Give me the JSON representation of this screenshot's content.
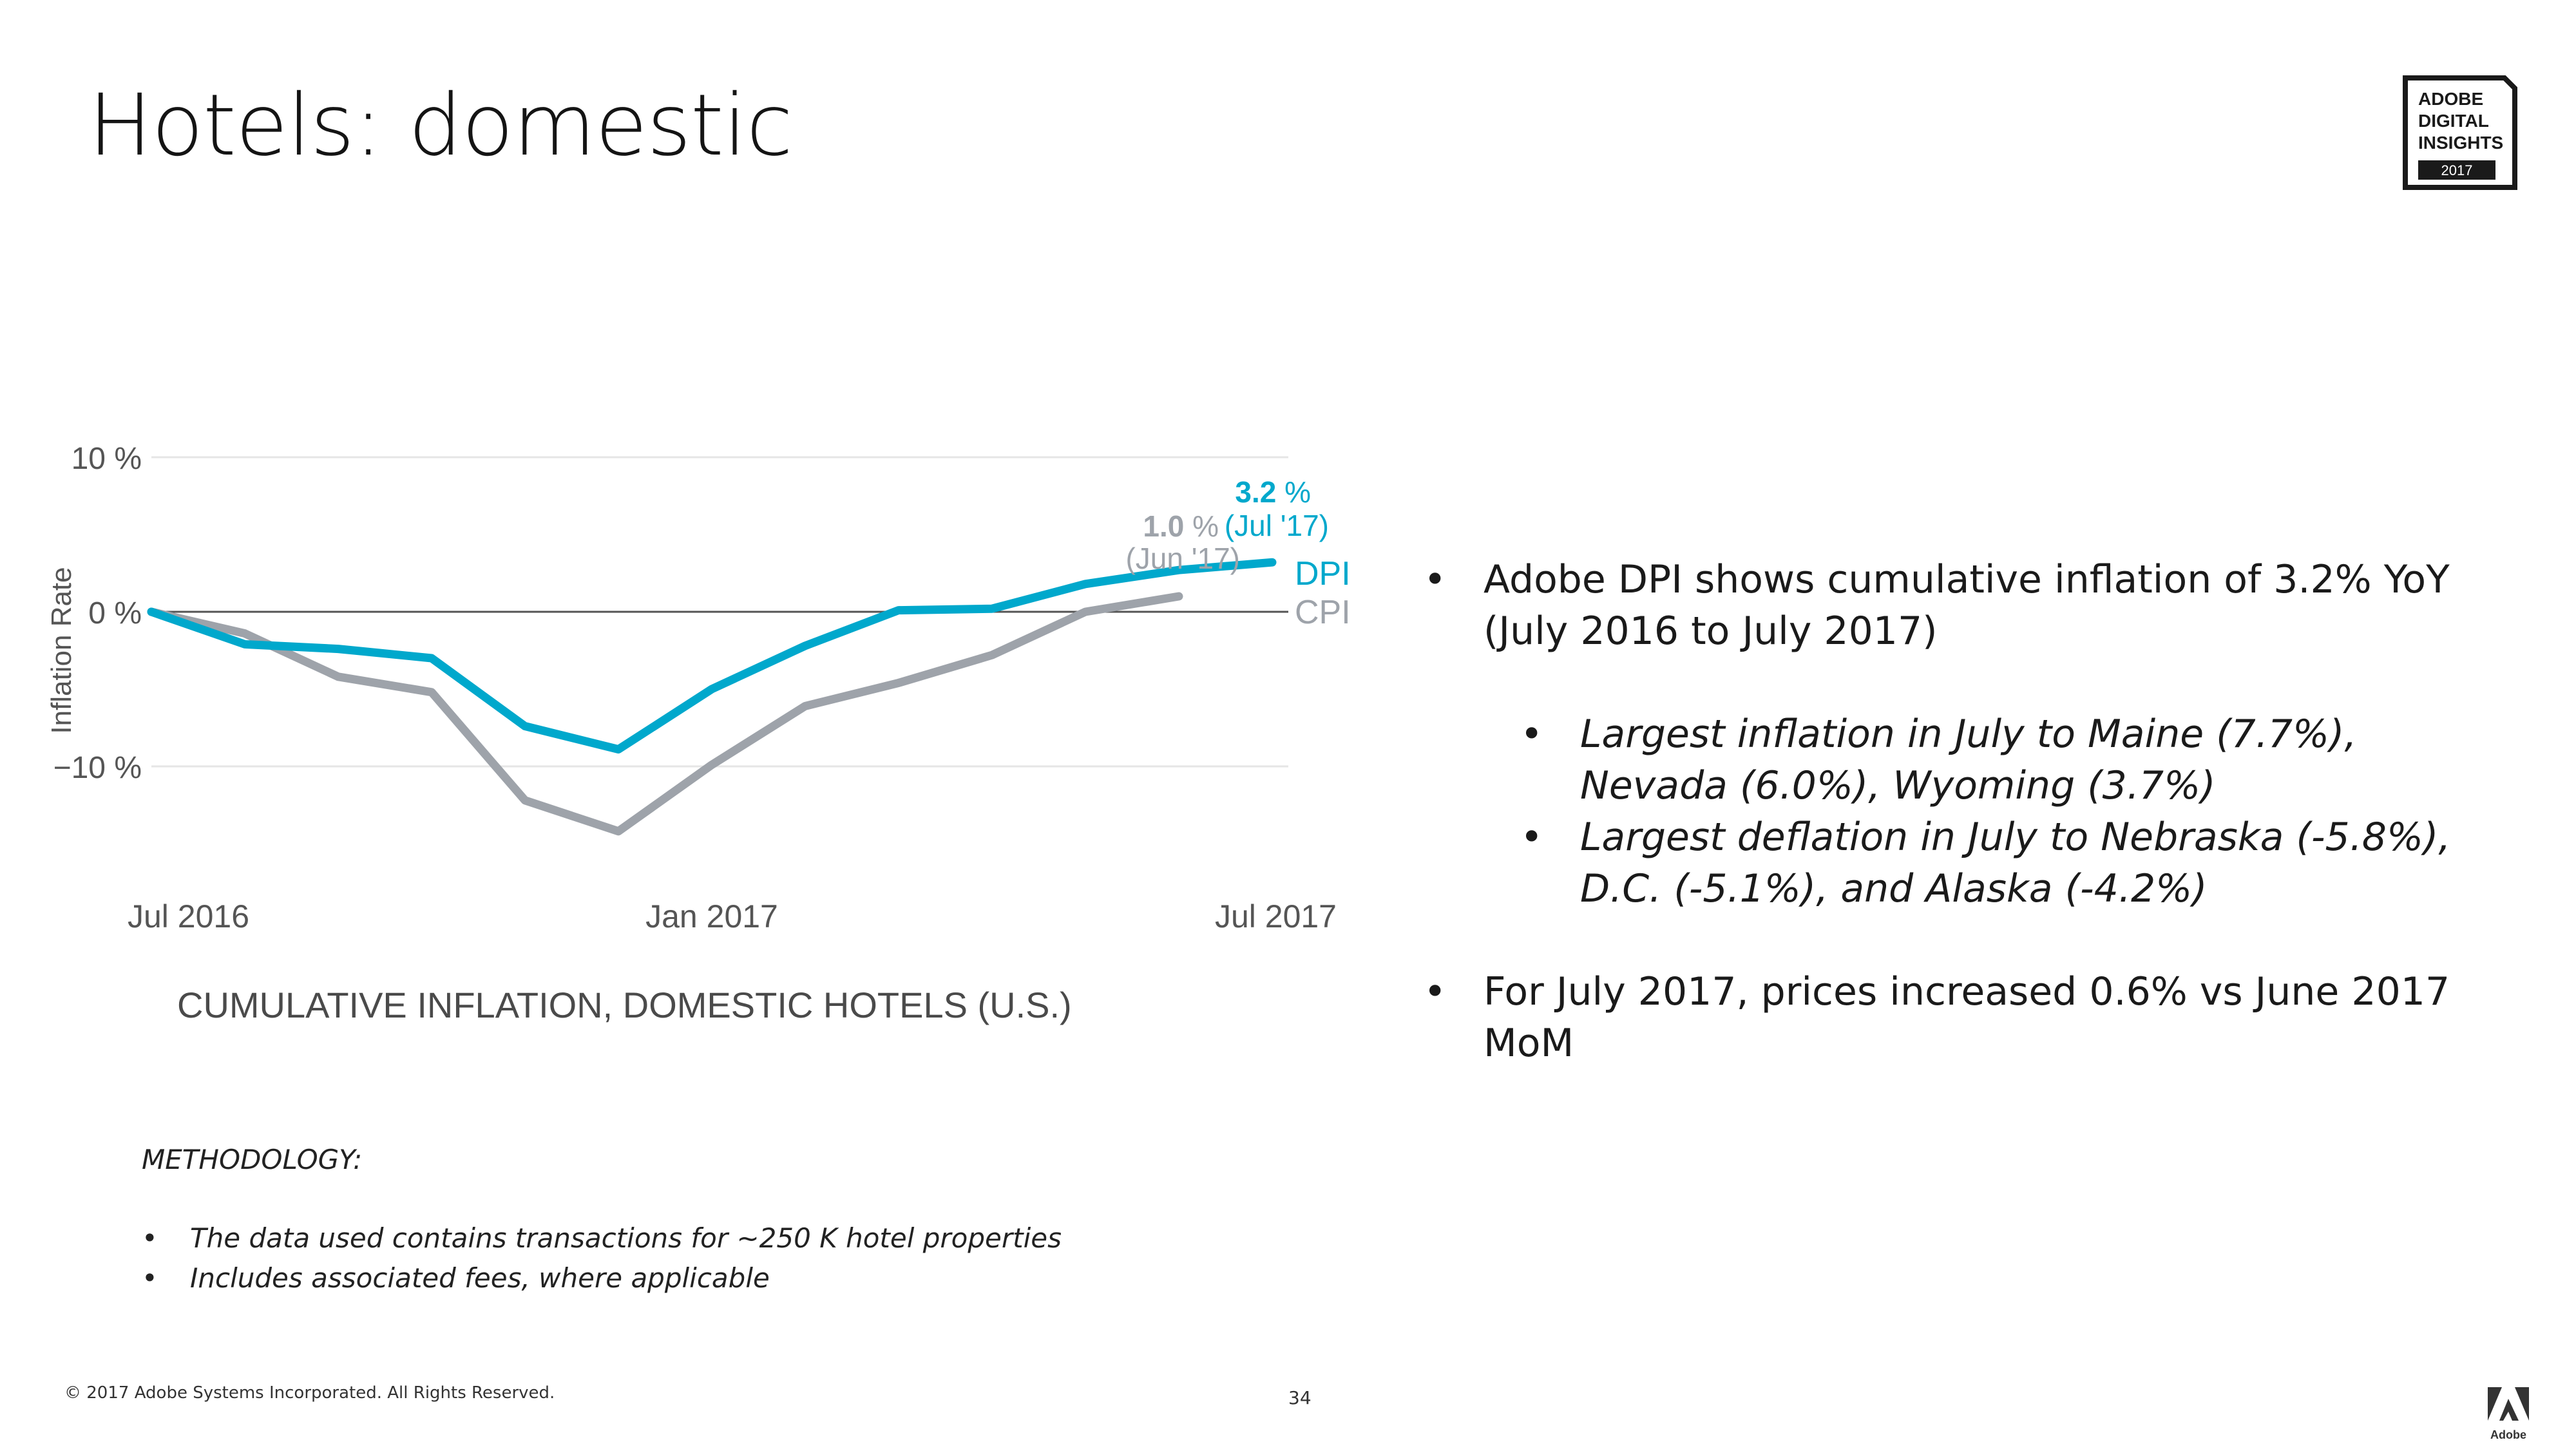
{
  "slide": {
    "title": "Hotels: domestic",
    "page_number": "34",
    "copyright": "© 2017 Adobe Systems Incorporated.  All Rights Reserved."
  },
  "badge": {
    "line1": "ADOBE",
    "line2": "DIGITAL",
    "line3": "INSIGHTS",
    "year": "2017"
  },
  "logo": {
    "text": "Adobe",
    "icon": "adobe-logo-icon"
  },
  "bullets": {
    "main1": "Adobe DPI shows cumulative inflation of 3.2% YoY (July 2016 to July 2017)",
    "sub1": "Largest inflation in July to Maine (7.7%), Nevada (6.0%), Wyoming (3.7%)",
    "sub2": "Largest deflation in July to Nebraska (-5.8%), D.C. (-5.1%), and Alaska (-4.2%)",
    "main2": "For July 2017, prices increased 0.6% vs June 2017 MoM"
  },
  "methodology": {
    "heading": "METHODOLOGY:",
    "items": [
      "The data used contains transactions for ~250 K hotel properties",
      "Includes associated fees, where applicable"
    ]
  },
  "colors": {
    "dpi": "#00A8CC",
    "cpi": "#9EA3AA",
    "axis": "#555555",
    "grid": "#E6E6E6"
  },
  "chart_data": {
    "type": "line",
    "title": "CUMULATIVE INFLATION, DOMESTIC HOTELS (U.S.)",
    "ylabel": "Inflation Rate",
    "xlabel": "",
    "ylim": [
      -15,
      10
    ],
    "yticks": [
      10,
      0,
      -10
    ],
    "ytick_labels": [
      "10 %",
      "0 %",
      "−10 %"
    ],
    "xlim": [
      0,
      12
    ],
    "xticks": [
      0,
      6,
      12
    ],
    "xtick_labels": [
      "Jul 2016",
      "Jan 2017",
      "Jul 2017"
    ],
    "series": [
      {
        "name": "DPI",
        "color": "#00A8CC",
        "x": [
          0,
          1,
          2,
          3,
          4,
          5,
          6,
          7,
          8,
          9,
          10,
          11,
          12
        ],
        "values": [
          0,
          -2.1,
          -2.4,
          -3.0,
          -7.4,
          -8.9,
          -5.0,
          -2.2,
          0.1,
          0.2,
          1.8,
          2.7,
          3.2
        ]
      },
      {
        "name": "CPI",
        "color": "#9EA3AA",
        "x": [
          0,
          1,
          2,
          3,
          4,
          5,
          6,
          7,
          8,
          9,
          10,
          11
        ],
        "values": [
          0,
          -1.4,
          -4.2,
          -5.2,
          -12.2,
          -14.2,
          -9.9,
          -6.1,
          -4.6,
          -2.8,
          0.0,
          1.0
        ]
      }
    ],
    "annotations": {
      "dpi_value": "3.2",
      "dpi_unit": " %",
      "dpi_date": "(Jul '17)",
      "cpi_value": "1.0",
      "cpi_unit": " %",
      "cpi_date": "(Jun '17)"
    },
    "legend": [
      "DPI",
      "CPI"
    ]
  }
}
